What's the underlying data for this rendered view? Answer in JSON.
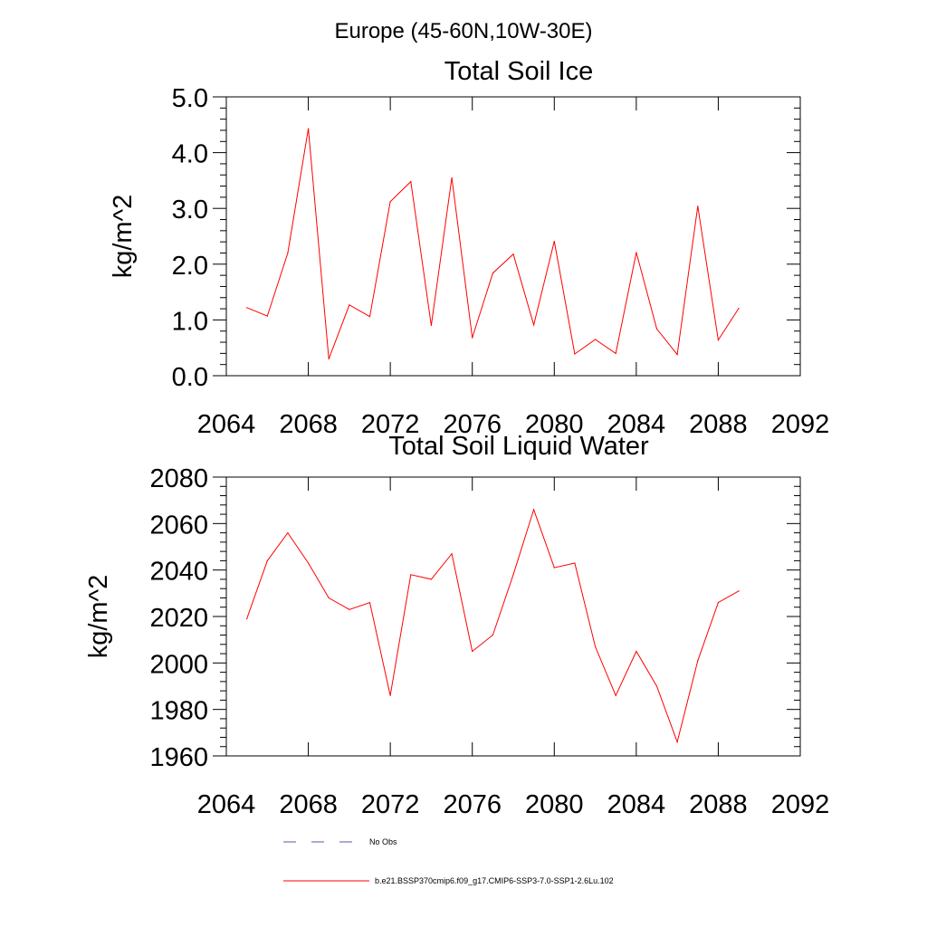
{
  "figure_title": "Europe (45-60N,10W-30E)",
  "legend": {
    "entries": [
      {
        "label": "No Obs",
        "style": "dashed",
        "color": "#5a5aa0"
      },
      {
        "label": "b.e21.BSSP370cmip6.f09_g17.CMIP6-SSP3-7.0-SSP1-2.6Lu.102",
        "style": "solid",
        "color": "#ff0000"
      }
    ]
  },
  "chart_data": [
    {
      "type": "line",
      "title": "Total Soil Ice",
      "xlabel": "",
      "ylabel": "kg/m^2",
      "xlim": [
        2064,
        2092
      ],
      "ylim": [
        0,
        5
      ],
      "xticks": [
        2064,
        2068,
        2072,
        2076,
        2080,
        2084,
        2088,
        2092
      ],
      "xtick_labels": [
        "2064",
        "2068",
        "2072",
        "2076",
        "2080",
        "2084",
        "2088",
        "2092"
      ],
      "yticks": [
        0,
        1,
        2,
        3,
        4,
        5
      ],
      "ytick_labels": [
        "0.0",
        "1.0",
        "2.0",
        "3.0",
        "4.0",
        "5.0"
      ],
      "grid": false,
      "color": "#ff0000",
      "series": [
        {
          "x": [
            2065,
            2066,
            2067,
            2068,
            2069,
            2070,
            2071,
            2072,
            2073,
            2074,
            2075,
            2076,
            2077,
            2078,
            2079,
            2080,
            2081,
            2082,
            2083,
            2084,
            2085,
            2086,
            2087,
            2088,
            2089
          ],
          "values": [
            1.22,
            1.07,
            2.2,
            4.43,
            0.3,
            1.27,
            1.06,
            3.12,
            3.48,
            0.9,
            3.55,
            0.68,
            1.84,
            2.18,
            0.91,
            2.41,
            0.39,
            0.65,
            0.4,
            2.21,
            0.84,
            0.38,
            3.04,
            0.64,
            1.21
          ]
        }
      ]
    },
    {
      "type": "line",
      "title": "Total Soil Liquid Water",
      "xlabel": "",
      "ylabel": "kg/m^2",
      "xlim": [
        2064,
        2092
      ],
      "ylim": [
        1960,
        2080
      ],
      "xticks": [
        2064,
        2068,
        2072,
        2076,
        2080,
        2084,
        2088,
        2092
      ],
      "xtick_labels": [
        "2064",
        "2068",
        "2072",
        "2076",
        "2080",
        "2084",
        "2088",
        "2092"
      ],
      "yticks": [
        1960,
        1980,
        2000,
        2020,
        2040,
        2060,
        2080
      ],
      "ytick_labels": [
        "1960",
        "1980",
        "2000",
        "2020",
        "2040",
        "2060",
        "2080"
      ],
      "grid": false,
      "color": "#ff0000",
      "series": [
        {
          "x": [
            2065,
            2066,
            2067,
            2068,
            2069,
            2070,
            2071,
            2072,
            2073,
            2074,
            2075,
            2076,
            2077,
            2078,
            2079,
            2080,
            2081,
            2082,
            2083,
            2084,
            2085,
            2086,
            2087,
            2088,
            2089
          ],
          "values": [
            2019,
            2044,
            2056,
            2043,
            2028,
            2023,
            2026,
            1986,
            2038,
            2036,
            2047,
            2005,
            2012,
            2038,
            2066,
            2041,
            2043,
            2007,
            1986,
            2005,
            1990,
            1966,
            2001,
            2026,
            2031
          ]
        }
      ]
    }
  ]
}
